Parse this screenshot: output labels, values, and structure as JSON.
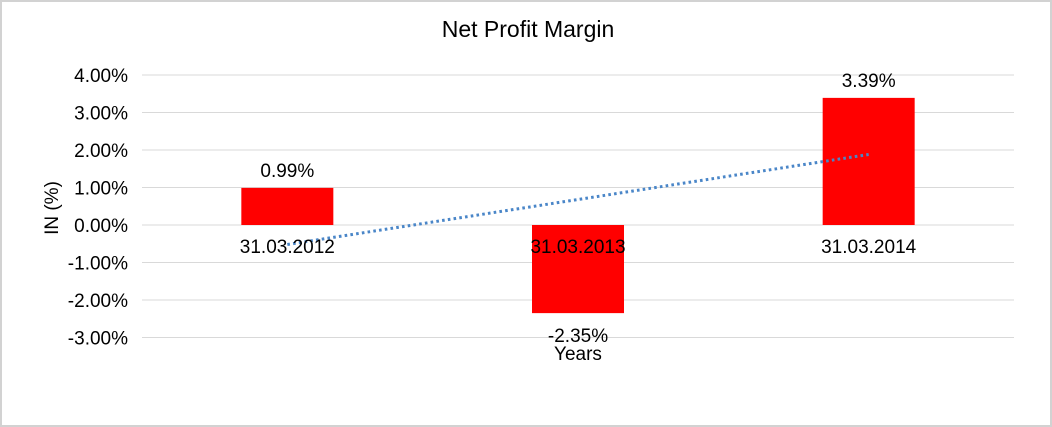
{
  "chart_data": {
    "type": "bar",
    "title": "Net Profit Margin",
    "xlabel": "Years",
    "ylabel": "IN (%)",
    "categories": [
      "31.03.2012",
      "31.03.2013",
      "31.03.2014"
    ],
    "values": [
      0.99,
      -2.35,
      3.39
    ],
    "data_labels": [
      "0.99%",
      "-2.35%",
      "3.39%"
    ],
    "ylim": [
      -3,
      4
    ],
    "grid": true,
    "legend": "none",
    "y_axis": {
      "ticks": [
        {
          "value": 4,
          "label": "4.00%"
        },
        {
          "value": 3,
          "label": "3.00%"
        },
        {
          "value": 2,
          "label": "2.00%"
        },
        {
          "value": 1,
          "label": "1.00%"
        },
        {
          "value": 0,
          "label": "0.00%"
        },
        {
          "value": -1,
          "label": "-1.00%"
        },
        {
          "value": -2,
          "label": "-2.00%"
        },
        {
          "value": -3,
          "label": "-3.00%"
        }
      ]
    },
    "colors": {
      "bar": "#FF0000",
      "gridline": "#D9D9D9",
      "text": "#000000",
      "trendline": "#4A86C8"
    },
    "trendline": {
      "type": "linear",
      "style": "dotted",
      "color": "#4A86C8",
      "start_value": -0.52,
      "end_value": 1.88
    }
  }
}
